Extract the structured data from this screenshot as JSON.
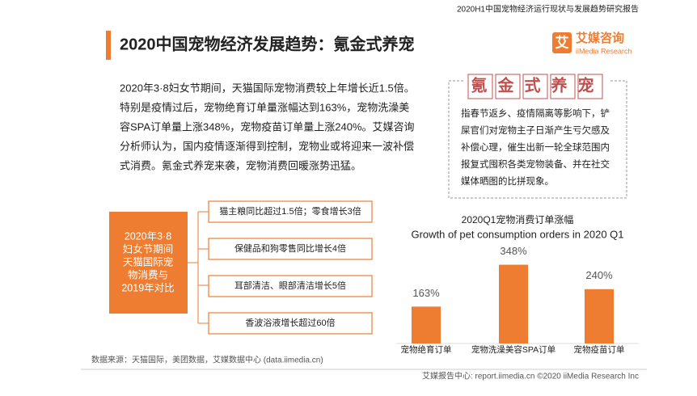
{
  "header": {
    "report": "2020H1中国宠物经济运行现状与发展趋势研究报告",
    "title": "2020中国宠物经济发展趋势：氪金式养宠",
    "logo_mark": "艾",
    "logo_name": "艾媒咨询",
    "logo_en": "iiMedia Research"
  },
  "paragraph": [
    "2020年3·8妇女节期间，天猫国际宠物消费较上年增长近1.5倍。",
    "特别是疫情过后，宠物绝育订单量涨幅达到163%，宠物洗澡美",
    "容SPA订单量上涨348%，宠物疫苗订单量上涨240%。艾媒咨询",
    "分析师认为，国内疫情逐渐得到控制，宠物业或将迎来一波补偿",
    "式消费。氪金式养宠来袭，宠物消费回暖涨势迅猛。"
  ],
  "note": {
    "title": "氪金式养宠",
    "lines": [
      "指春节返乡、疫情隔离等影响下，铲",
      "屎官们对宠物主子日渐产生亏欠感及",
      "补偿心理，催生出新一轮全球范围内",
      "报复式囤积各类宠物装备、并在社交",
      "媒体晒图的比拼现象。"
    ]
  },
  "comparison": {
    "label": [
      "2020年3·8",
      "妇女节期间",
      "天猫国际宠",
      "物消费与",
      "2019年对比"
    ],
    "items": [
      "猫主粮同比超过1.5倍；零食增长3倍",
      "保健品和狗零售同比增长4倍",
      "耳部清洁、眼部清洁增长5倍",
      "香波浴液增长超过60倍"
    ]
  },
  "chart_data": {
    "type": "bar",
    "title": "2020Q1宠物消费订单涨幅",
    "subtitle": "Growth of pet consumption orders in 2020 Q1",
    "categories": [
      "宠物绝育订单",
      "宠物洗澡美容SPA订单",
      "宠物疫苗订单"
    ],
    "values": [
      163,
      348,
      240
    ],
    "value_labels": [
      "163%",
      "348%",
      "240%"
    ],
    "color": "#ee7d31"
  },
  "footer": {
    "source": "数据来源：天猫国际，美团数据，艾媒数据中心 (data.iimedia.cn)",
    "credit": "艾媒报告中心: report.iimedia.cn  ©2020  iiMedia Research  Inc"
  }
}
